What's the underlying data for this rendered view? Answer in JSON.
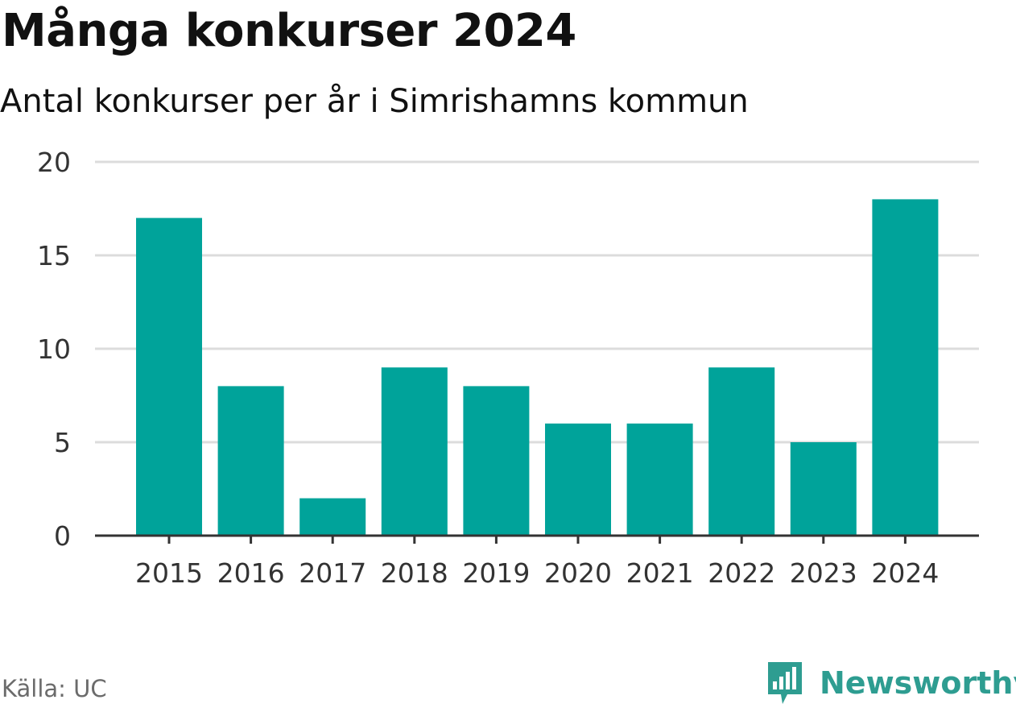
{
  "header": {
    "title": "Många konkurser 2024",
    "subtitle": "Antal konkurser per år i Simrishamns kommun"
  },
  "footer": {
    "source": "Källa: UC",
    "brand": "Newsworthy",
    "brand_icon": "newsworthy-logo-icon"
  },
  "colors": {
    "bar": "#00a39a",
    "brand": "#2e9d91",
    "grid": "#dcdcdc",
    "axis": "#333333"
  },
  "chart_data": {
    "type": "bar",
    "categories": [
      "2015",
      "2016",
      "2017",
      "2018",
      "2019",
      "2020",
      "2021",
      "2022",
      "2023",
      "2024"
    ],
    "values": [
      17,
      8,
      2,
      9,
      8,
      6,
      6,
      9,
      5,
      18
    ],
    "title": "Många konkurser 2024",
    "subtitle": "Antal konkurser per år i Simrishamns kommun",
    "xlabel": "",
    "ylabel": "",
    "ylim": [
      0,
      20
    ],
    "yticks": [
      0,
      5,
      10,
      15,
      20
    ],
    "grid": true,
    "legend": "none"
  }
}
